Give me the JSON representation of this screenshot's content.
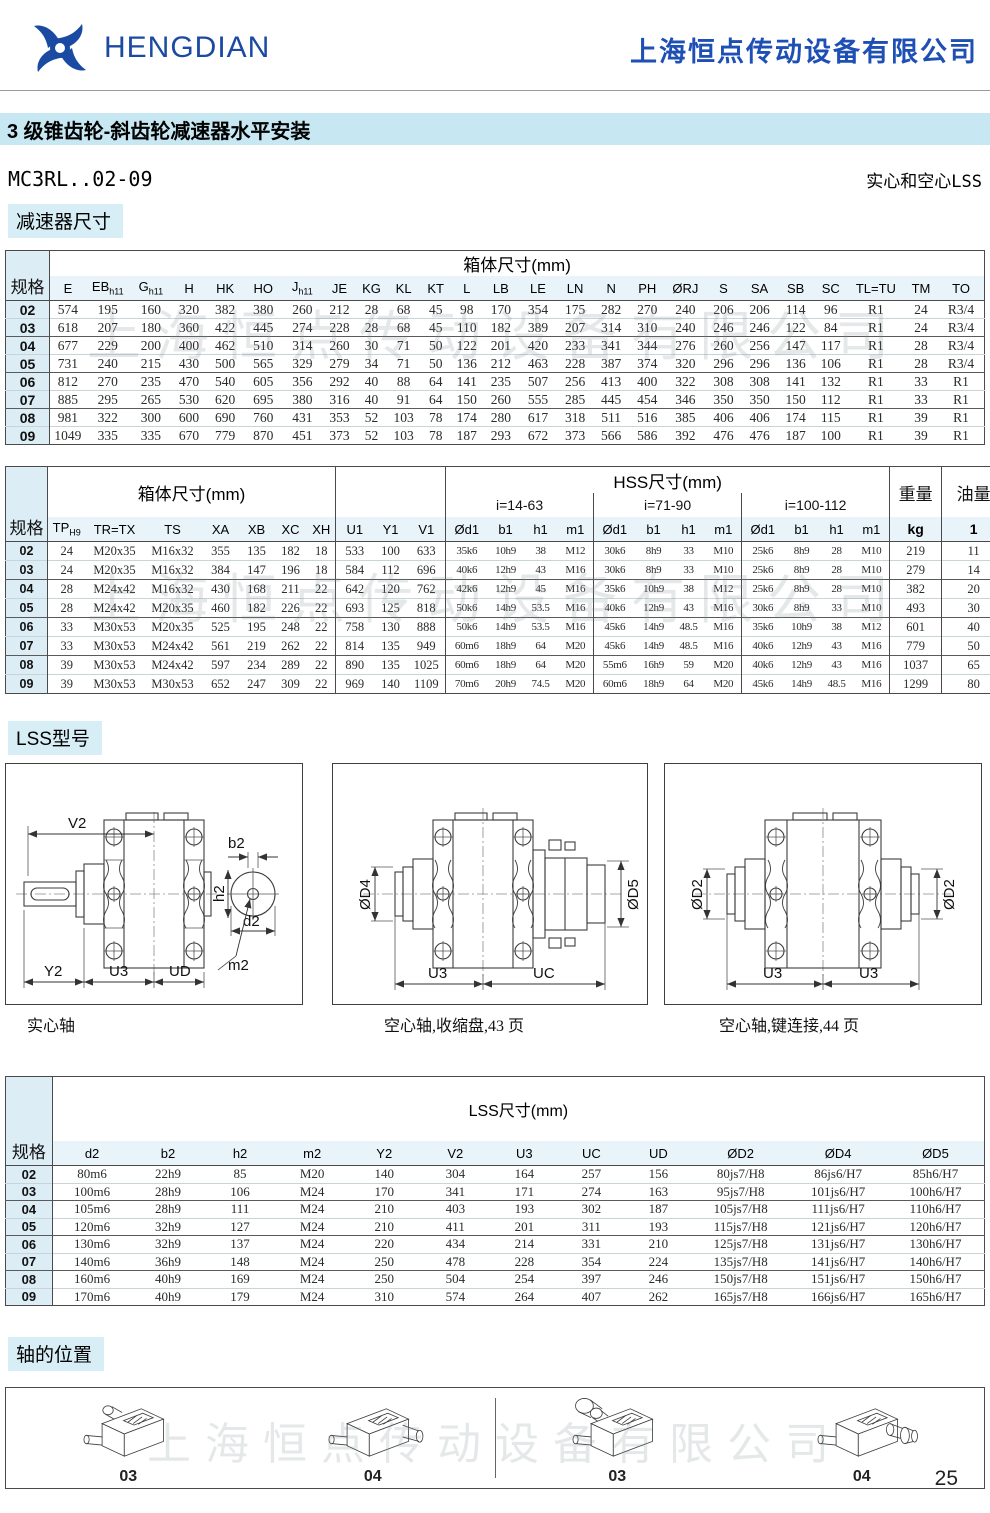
{
  "watermark": "上海恒点传动设备有限公司",
  "header": {
    "logo_text": "HENGDIAN",
    "company_name": "上海恒点传动设备有限公司"
  },
  "title_bar": "3 级锥齿轮-斜齿轮减速器水平安装",
  "model_line": {
    "model": "MC3RL..02-09",
    "note": "实心和空心LSS"
  },
  "sections": {
    "dims_label": "减速器尺寸",
    "lss_label": "LSS型号",
    "shaft_label": "轴的位置"
  },
  "table1": {
    "spec_header": "规格",
    "group_header": "箱体尺寸(mm)",
    "columns": [
      "E",
      {
        "t": "EB",
        "s": "h11"
      },
      {
        "t": "G",
        "s": "h11"
      },
      "H",
      "HK",
      "HO",
      {
        "t": "J",
        "s": "h11"
      },
      "JE",
      "KG",
      "KL",
      "KT",
      "L",
      "LB",
      "LE",
      "LN",
      "N",
      "PH",
      "ØRJ",
      "S",
      "SA",
      "SB",
      "SC",
      "TL=TU",
      "TM",
      "TO"
    ],
    "rows": [
      {
        "spec": "02",
        "values": [
          "574",
          "195",
          "160",
          "320",
          "382",
          "380",
          "260",
          "212",
          "28",
          "68",
          "45",
          "98",
          "170",
          "354",
          "175",
          "282",
          "270",
          "240",
          "206",
          "206",
          "114",
          "96",
          "R1",
          "24",
          "R3/4"
        ]
      },
      {
        "spec": "03",
        "values": [
          "618",
          "207",
          "180",
          "360",
          "422",
          "445",
          "274",
          "228",
          "28",
          "68",
          "45",
          "110",
          "182",
          "389",
          "207",
          "314",
          "310",
          "240",
          "246",
          "246",
          "122",
          "84",
          "R1",
          "24",
          "R3/4"
        ]
      },
      {
        "spec": "04",
        "values": [
          "677",
          "229",
          "200",
          "400",
          "462",
          "510",
          "314",
          "260",
          "30",
          "71",
          "50",
          "122",
          "201",
          "420",
          "233",
          "341",
          "344",
          "276",
          "260",
          "256",
          "147",
          "117",
          "R1",
          "28",
          "R3/4"
        ]
      },
      {
        "spec": "05",
        "values": [
          "731",
          "240",
          "215",
          "430",
          "500",
          "565",
          "329",
          "279",
          "34",
          "71",
          "50",
          "136",
          "212",
          "463",
          "228",
          "387",
          "374",
          "320",
          "296",
          "296",
          "136",
          "106",
          "R1",
          "28",
          "R3/4"
        ]
      },
      {
        "spec": "06",
        "values": [
          "812",
          "270",
          "235",
          "470",
          "540",
          "605",
          "356",
          "292",
          "40",
          "88",
          "64",
          "141",
          "235",
          "507",
          "256",
          "413",
          "400",
          "322",
          "308",
          "308",
          "141",
          "132",
          "R1",
          "33",
          "R1"
        ]
      },
      {
        "spec": "07",
        "values": [
          "885",
          "295",
          "265",
          "530",
          "620",
          "695",
          "380",
          "316",
          "40",
          "91",
          "64",
          "150",
          "260",
          "555",
          "285",
          "445",
          "454",
          "346",
          "350",
          "350",
          "150",
          "112",
          "R1",
          "33",
          "R1"
        ]
      },
      {
        "spec": "08",
        "values": [
          "981",
          "322",
          "300",
          "600",
          "690",
          "760",
          "431",
          "353",
          "52",
          "103",
          "78",
          "174",
          "280",
          "617",
          "318",
          "511",
          "516",
          "385",
          "406",
          "406",
          "174",
          "115",
          "R1",
          "39",
          "R1"
        ]
      },
      {
        "spec": "09",
        "values": [
          "1049",
          "335",
          "335",
          "670",
          "779",
          "870",
          "451",
          "373",
          "52",
          "103",
          "78",
          "187",
          "293",
          "672",
          "373",
          "566",
          "586",
          "392",
          "476",
          "476",
          "187",
          "100",
          "R1",
          "39",
          "R1"
        ]
      }
    ]
  },
  "table2": {
    "spec_header": "规格",
    "box_header": "箱体尺寸(mm)",
    "hss_header": "HSS尺寸(mm)",
    "weight_header": "重量",
    "oil_header": "油量",
    "weight_unit": "kg",
    "oil_unit": "1",
    "ratio_groups": [
      "i=14-63",
      "i=71-90",
      "i=100-112"
    ],
    "left_columns": [
      {
        "t": "TP",
        "s": "H9"
      },
      "TR=TX",
      "TS",
      "XA",
      "XB",
      "XC",
      "XH"
    ],
    "mid_columns": [
      "U1",
      "Y1",
      "V1"
    ],
    "ratio_columns": [
      "Ød1",
      "b1",
      "h1",
      "m1"
    ],
    "rows": [
      {
        "spec": "02",
        "left": [
          "24",
          "M20x35",
          "M16x32",
          "355",
          "135",
          "182",
          "18"
        ],
        "mid": [
          "533",
          "100",
          "633"
        ],
        "g1": [
          "35k6",
          "10h9",
          "38",
          "M12"
        ],
        "g2": [
          "30k6",
          "8h9",
          "33",
          "M10"
        ],
        "g3": [
          "25k6",
          "8h9",
          "28",
          "M10"
        ],
        "weight": "219",
        "oil": "11"
      },
      {
        "spec": "03",
        "left": [
          "24",
          "M20x35",
          "M16x32",
          "384",
          "147",
          "196",
          "18"
        ],
        "mid": [
          "584",
          "112",
          "696"
        ],
        "g1": [
          "40k6",
          "12h9",
          "43",
          "M16"
        ],
        "g2": [
          "30k6",
          "8h9",
          "33",
          "M10"
        ],
        "g3": [
          "25k6",
          "8h9",
          "28",
          "M10"
        ],
        "weight": "279",
        "oil": "14"
      },
      {
        "spec": "04",
        "left": [
          "28",
          "M24x42",
          "M16x32",
          "430",
          "168",
          "211",
          "22"
        ],
        "mid": [
          "642",
          "120",
          "762"
        ],
        "g1": [
          "42k6",
          "12h9",
          "45",
          "M16"
        ],
        "g2": [
          "35k6",
          "10h9",
          "38",
          "M12"
        ],
        "g3": [
          "25k6",
          "8h9",
          "28",
          "M10"
        ],
        "weight": "382",
        "oil": "20"
      },
      {
        "spec": "05",
        "left": [
          "28",
          "M24x42",
          "M20x35",
          "460",
          "182",
          "226",
          "22"
        ],
        "mid": [
          "693",
          "125",
          "818"
        ],
        "g1": [
          "50k6",
          "14h9",
          "53.5",
          "M16"
        ],
        "g2": [
          "40k6",
          "12h9",
          "43",
          "M16"
        ],
        "g3": [
          "30k6",
          "8h9",
          "33",
          "M10"
        ],
        "weight": "493",
        "oil": "30"
      },
      {
        "spec": "06",
        "left": [
          "33",
          "M30x53",
          "M20x35",
          "525",
          "195",
          "248",
          "22"
        ],
        "mid": [
          "758",
          "130",
          "888"
        ],
        "g1": [
          "50k6",
          "14h9",
          "53.5",
          "M16"
        ],
        "g2": [
          "45k6",
          "14h9",
          "48.5",
          "M16"
        ],
        "g3": [
          "35k6",
          "10h9",
          "38",
          "M12"
        ],
        "weight": "601",
        "oil": "40"
      },
      {
        "spec": "07",
        "left": [
          "33",
          "M30x53",
          "M24x42",
          "561",
          "219",
          "262",
          "22"
        ],
        "mid": [
          "814",
          "135",
          "949"
        ],
        "g1": [
          "60m6",
          "18h9",
          "64",
          "M20"
        ],
        "g2": [
          "45k6",
          "14h9",
          "48.5",
          "M16"
        ],
        "g3": [
          "40k6",
          "12h9",
          "43",
          "M16"
        ],
        "weight": "779",
        "oil": "50"
      },
      {
        "spec": "08",
        "left": [
          "39",
          "M30x53",
          "M24x42",
          "597",
          "234",
          "289",
          "22"
        ],
        "mid": [
          "890",
          "135",
          "1025"
        ],
        "g1": [
          "60m6",
          "18h9",
          "64",
          "M20"
        ],
        "g2": [
          "55m6",
          "16h9",
          "59",
          "M20"
        ],
        "g3": [
          "40k6",
          "12h9",
          "43",
          "M16"
        ],
        "weight": "1037",
        "oil": "65"
      },
      {
        "spec": "09",
        "left": [
          "39",
          "M30x53",
          "M30x53",
          "652",
          "247",
          "309",
          "22"
        ],
        "mid": [
          "969",
          "140",
          "1109"
        ],
        "g1": [
          "70m6",
          "20h9",
          "74.5",
          "M20"
        ],
        "g2": [
          "60m6",
          "18h9",
          "64",
          "M20"
        ],
        "g3": [
          "45k6",
          "14h9",
          "48.5",
          "M16"
        ],
        "weight": "1299",
        "oil": "80"
      }
    ]
  },
  "table3": {
    "spec_header": "规格",
    "title": "LSS尺寸(mm)",
    "columns": [
      "d2",
      "b2",
      "h2",
      "m2",
      "Y2",
      "V2",
      "U3",
      "UC",
      "UD",
      "ØD2",
      "ØD4",
      "ØD5"
    ],
    "rows": [
      {
        "spec": "02",
        "values": [
          "80m6",
          "22h9",
          "85",
          "M20",
          "140",
          "304",
          "164",
          "257",
          "156",
          "80js7/H8",
          "86js6/H7",
          "85h6/H7"
        ]
      },
      {
        "spec": "03",
        "values": [
          "100m6",
          "28h9",
          "106",
          "M24",
          "170",
          "341",
          "171",
          "274",
          "163",
          "95js7/H8",
          "101js6/H7",
          "100h6/H7"
        ]
      },
      {
        "spec": "04",
        "values": [
          "105m6",
          "28h9",
          "111",
          "M24",
          "210",
          "403",
          "193",
          "302",
          "187",
          "105js7/H8",
          "111js6/H7",
          "110h6/H7"
        ]
      },
      {
        "spec": "05",
        "values": [
          "120m6",
          "32h9",
          "127",
          "M24",
          "210",
          "411",
          "201",
          "311",
          "193",
          "115js7/H8",
          "121js6/H7",
          "120h6/H7"
        ]
      },
      {
        "spec": "06",
        "values": [
          "130m6",
          "32h9",
          "137",
          "M24",
          "220",
          "434",
          "214",
          "331",
          "210",
          "125js7/H8",
          "131js6/H7",
          "130h6/H7"
        ]
      },
      {
        "spec": "07",
        "values": [
          "140m6",
          "36h9",
          "148",
          "M24",
          "250",
          "478",
          "228",
          "354",
          "224",
          "135js7/H8",
          "141js6/H7",
          "140h6/H7"
        ]
      },
      {
        "spec": "08",
        "values": [
          "160m6",
          "40h9",
          "169",
          "M24",
          "250",
          "504",
          "254",
          "397",
          "246",
          "150js7/H8",
          "151js6/H7",
          "150h6/H7"
        ]
      },
      {
        "spec": "09",
        "values": [
          "170m6",
          "40h9",
          "179",
          "M24",
          "310",
          "574",
          "264",
          "407",
          "262",
          "165js7/H8",
          "166js6/H7",
          "165h6/H7"
        ]
      }
    ]
  },
  "diagrams": {
    "solid": {
      "caption": "实心轴",
      "labels": {
        "v2": "V2",
        "b2": "b2",
        "h2": "h2",
        "d2": "d2",
        "m2": "m2",
        "y2": "Y2",
        "u3": "U3",
        "ud": "UD"
      }
    },
    "shrink": {
      "caption": "空心轴,收缩盘,43 页",
      "labels": {
        "d4": "ØD4",
        "d5": "ØD5",
        "u3": "U3",
        "uc": "UC"
      }
    },
    "keyed": {
      "caption": "空心轴,键连接,44 页",
      "labels": {
        "d2_left": "ØD2",
        "d2_right": "ØD2",
        "u3_left": "U3",
        "u3_right": "U3"
      }
    }
  },
  "shaft_positions": {
    "labels": [
      "03",
      "04",
      "03",
      "04"
    ]
  },
  "page_number": "25"
}
